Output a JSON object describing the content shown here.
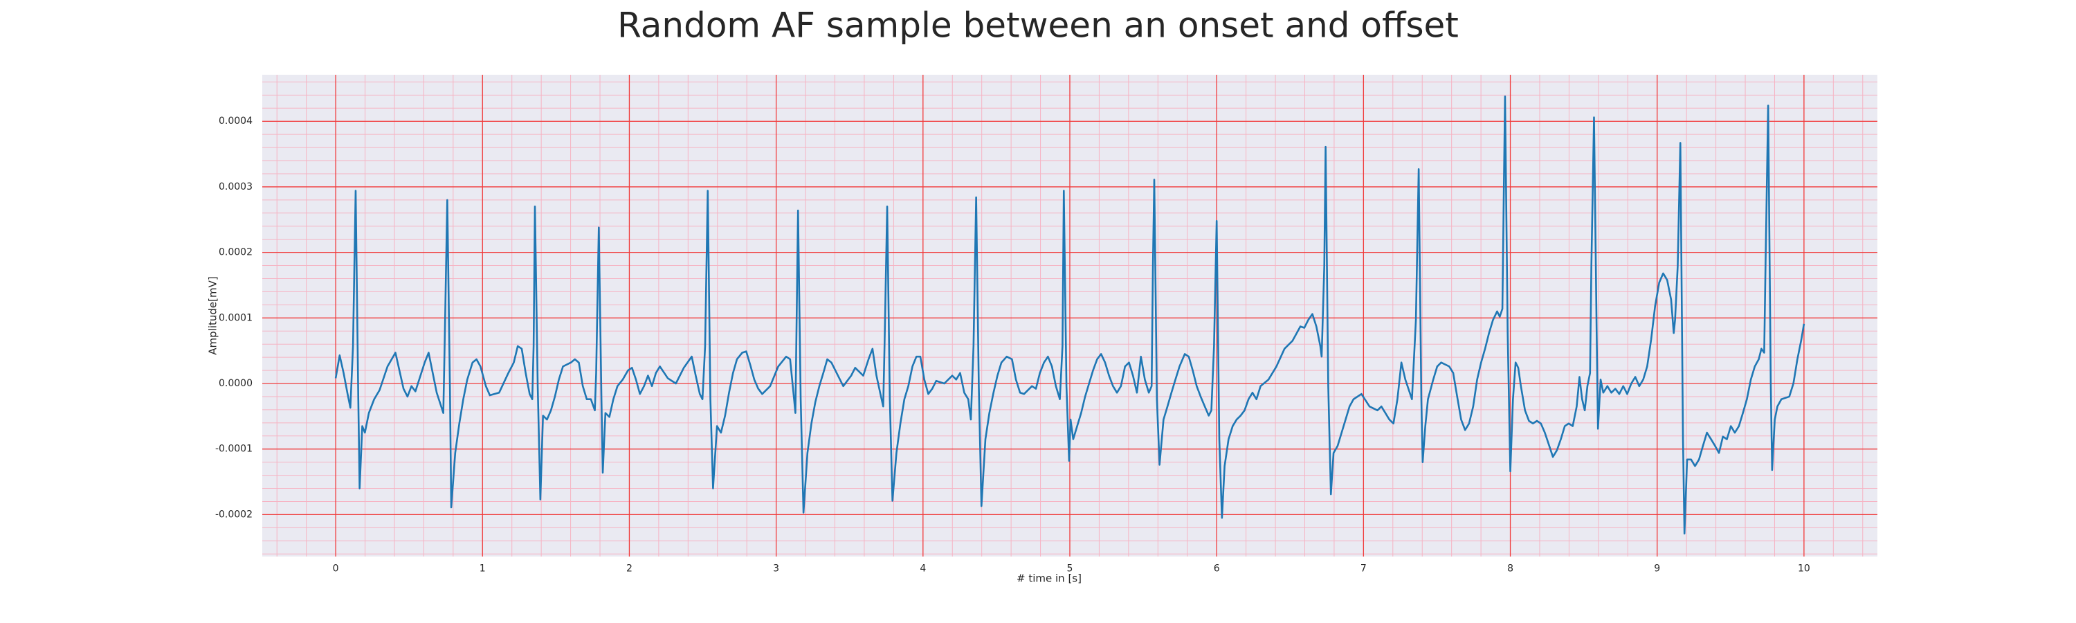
{
  "chart_data": {
    "type": "line",
    "title": "Random AF sample between an onset and offset",
    "xlabel": "# time in [s]",
    "ylabel": "Amplitude[mV]",
    "color": "#1f77b4",
    "grid": true,
    "minor_grid": true,
    "xlim": [
      -0.5,
      10.5
    ],
    "ylim": [
      -0.000264,
      0.000471
    ],
    "xticks": [
      0,
      1,
      2,
      3,
      4,
      5,
      6,
      7,
      8,
      9,
      10
    ],
    "yticks": [
      -0.0002,
      -0.0001,
      {
        "value": 0,
        "label": "0.0000"
      },
      0.0001,
      0.0002,
      0.0003,
      0.0004
    ],
    "x": [
      0.0,
      0.027,
      0.054,
      0.081,
      0.1,
      0.118,
      0.136,
      0.154,
      0.163,
      0.181,
      0.199,
      0.226,
      0.262,
      0.299,
      0.353,
      0.407,
      0.462,
      0.489,
      0.516,
      0.543,
      0.606,
      0.633,
      0.661,
      0.688,
      0.733,
      0.742,
      0.76,
      0.778,
      0.787,
      0.814,
      0.842,
      0.869,
      0.896,
      0.932,
      0.959,
      0.986,
      1.023,
      1.05,
      1.113,
      1.176,
      1.213,
      1.24,
      1.267,
      1.294,
      1.321,
      1.339,
      1.348,
      1.357,
      1.376,
      1.394,
      1.412,
      1.439,
      1.466,
      1.493,
      1.52,
      1.548,
      1.602,
      1.629,
      1.656,
      1.683,
      1.71,
      1.738,
      1.765,
      1.774,
      1.792,
      1.81,
      1.819,
      1.837,
      1.864,
      1.891,
      1.919,
      1.955,
      1.991,
      2.018,
      2.045,
      2.072,
      2.1,
      2.127,
      2.154,
      2.181,
      2.208,
      2.262,
      2.317,
      2.371,
      2.425,
      2.452,
      2.48,
      2.498,
      2.516,
      2.534,
      2.552,
      2.57,
      2.597,
      2.624,
      2.652,
      2.679,
      2.706,
      2.733,
      2.769,
      2.796,
      2.824,
      2.851,
      2.878,
      2.905,
      2.959,
      3.014,
      3.068,
      3.095,
      3.122,
      3.131,
      3.149,
      3.167,
      3.186,
      3.213,
      3.24,
      3.267,
      3.294,
      3.321,
      3.348,
      3.376,
      3.43,
      3.457,
      3.511,
      3.538,
      3.593,
      3.629,
      3.656,
      3.683,
      3.71,
      3.729,
      3.738,
      3.756,
      3.774,
      3.792,
      3.819,
      3.846,
      3.873,
      3.9,
      3.928,
      3.955,
      3.982,
      4.009,
      4.036,
      4.063,
      4.09,
      4.145,
      4.199,
      4.226,
      4.253,
      4.281,
      4.308,
      4.326,
      4.344,
      4.362,
      4.38,
      4.398,
      4.425,
      4.452,
      4.48,
      4.507,
      4.534,
      4.57,
      4.606,
      4.633,
      4.661,
      4.688,
      4.742,
      4.769,
      4.796,
      4.824,
      4.851,
      4.878,
      4.905,
      4.932,
      4.95,
      4.959,
      4.977,
      4.995,
      5.005,
      5.023,
      5.05,
      5.077,
      5.104,
      5.131,
      5.158,
      5.186,
      5.213,
      5.24,
      5.267,
      5.294,
      5.321,
      5.348,
      5.376,
      5.403,
      5.43,
      5.457,
      5.484,
      5.511,
      5.538,
      5.557,
      5.566,
      5.575,
      5.593,
      5.611,
      5.638,
      5.665,
      5.692,
      5.719,
      5.747,
      5.783,
      5.81,
      5.837,
      5.864,
      5.891,
      5.919,
      5.946,
      5.964,
      5.982,
      6.0,
      6.018,
      6.036,
      6.054,
      6.081,
      6.109,
      6.136,
      6.163,
      6.19,
      6.217,
      6.244,
      6.271,
      6.299,
      6.353,
      6.407,
      6.462,
      6.516,
      6.57,
      6.597,
      6.624,
      6.652,
      6.679,
      6.706,
      6.715,
      6.733,
      6.742,
      6.76,
      6.778,
      6.796,
      6.824,
      6.851,
      6.878,
      6.905,
      6.932,
      6.986,
      7.041,
      7.095,
      7.122,
      7.176,
      7.204,
      7.231,
      7.258,
      7.285,
      7.33,
      7.357,
      7.376,
      7.394,
      7.403,
      7.421,
      7.439,
      7.475,
      7.502,
      7.529,
      7.584,
      7.611,
      7.638,
      7.665,
      7.692,
      7.719,
      7.747,
      7.774,
      7.801,
      7.828,
      7.855,
      7.882,
      7.91,
      7.928,
      7.946,
      7.955,
      7.964,
      7.982,
      8.0,
      8.018,
      8.036,
      8.054,
      8.072,
      8.1,
      8.127,
      8.154,
      8.181,
      8.208,
      8.235,
      8.262,
      8.29,
      8.317,
      8.344,
      8.371,
      8.398,
      8.425,
      8.452,
      8.471,
      8.489,
      8.507,
      8.525,
      8.543,
      8.552,
      8.57,
      8.588,
      8.597,
      8.615,
      8.633,
      8.661,
      8.688,
      8.715,
      8.742,
      8.769,
      8.796,
      8.824,
      8.851,
      8.878,
      8.905,
      8.932,
      8.959,
      8.986,
      9.014,
      9.041,
      9.068,
      9.095,
      9.113,
      9.122,
      9.14,
      9.158,
      9.176,
      9.186,
      9.204,
      9.231,
      9.258,
      9.285,
      9.312,
      9.339,
      9.367,
      9.394,
      9.421,
      9.448,
      9.475,
      9.502,
      9.529,
      9.557,
      9.584,
      9.611,
      9.638,
      9.665,
      9.692,
      9.71,
      9.729,
      9.738,
      9.756,
      9.774,
      9.783,
      9.801,
      9.819,
      9.846,
      9.9,
      9.928,
      9.955,
      9.982,
      10.0
    ],
    "values": [
      8e-06,
      4.3e-05,
      1.6e-05,
      -1.6e-05,
      -3.7e-05,
      5.7e-05,
      0.000294,
      -2.4e-05,
      -0.00016,
      -6.5e-05,
      -7.5e-05,
      -4.5e-05,
      -2.4e-05,
      -1e-05,
      2.6e-05,
      4.7e-05,
      -8e-06,
      -2e-05,
      -4e-06,
      -1.2e-05,
      3.2e-05,
      4.7e-05,
      1.6e-05,
      -1.4e-05,
      -4.5e-05,
      5.7e-05,
      0.00028,
      -4e-06,
      -0.000189,
      -0.000106,
      -6.1e-05,
      -2.4e-05,
      6e-06,
      3.2e-05,
      3.7e-05,
      2.6e-05,
      -4e-06,
      -1.8e-05,
      -1.4e-05,
      1.6e-05,
      3.2e-05,
      5.7e-05,
      5.3e-05,
      1.6e-05,
      -1.6e-05,
      -2.4e-05,
      5.7e-05,
      0.00027,
      -4e-06,
      -0.000177,
      -4.9e-05,
      -5.5e-05,
      -4.1e-05,
      -2e-05,
      6e-06,
      2.6e-05,
      3.2e-05,
      3.7e-05,
      3.2e-05,
      -4e-06,
      -2.4e-05,
      -2.4e-05,
      -4.1e-05,
      1.6e-05,
      0.000238,
      -2.4e-05,
      -0.000136,
      -4.5e-05,
      -5.1e-05,
      -2.4e-05,
      -4e-06,
      6e-06,
      2e-05,
      2.4e-05,
      6e-06,
      -1.6e-05,
      -4e-06,
      1.2e-05,
      -4e-06,
      1.6e-05,
      2.6e-05,
      8e-06,
      0.0,
      2.4e-05,
      4.1e-05,
      1.2e-05,
      -1.6e-05,
      -2.4e-05,
      5.7e-05,
      0.000294,
      -2.4e-05,
      -0.00016,
      -6.5e-05,
      -7.5e-05,
      -4.9e-05,
      -1.4e-05,
      1.6e-05,
      3.7e-05,
      4.7e-05,
      4.9e-05,
      2.8e-05,
      6e-06,
      -8e-06,
      -1.6e-05,
      -4e-06,
      2.6e-05,
      4.1e-05,
      3.7e-05,
      -2.4e-05,
      -4.5e-05,
      0.000264,
      -2.4e-05,
      -0.000197,
      -0.000106,
      -6.1e-05,
      -2.8e-05,
      -4e-06,
      1.6e-05,
      3.7e-05,
      3.2e-05,
      8e-06,
      -4e-06,
      1.2e-05,
      2.4e-05,
      1.2e-05,
      3.7e-05,
      5.3e-05,
      1.2e-05,
      -1.6e-05,
      -3.5e-05,
      5.7e-05,
      0.00027,
      -2.4e-05,
      -0.000179,
      -0.000106,
      -6.1e-05,
      -2.4e-05,
      -4e-06,
      2.6e-05,
      4.1e-05,
      4.1e-05,
      6e-06,
      -1.6e-05,
      -8e-06,
      4e-06,
      0.0,
      1.2e-05,
      6e-06,
      1.6e-05,
      -1.4e-05,
      -2.4e-05,
      -5.5e-05,
      5.7e-05,
      0.000284,
      -4e-06,
      -0.000187,
      -8.5e-05,
      -4.5e-05,
      -1.4e-05,
      1.2e-05,
      3.2e-05,
      4.1e-05,
      3.7e-05,
      6e-06,
      -1.4e-05,
      -1.6e-05,
      -4e-06,
      -8e-06,
      1.6e-05,
      3.2e-05,
      4.1e-05,
      2.6e-05,
      -4e-06,
      -2.4e-05,
      5.7e-05,
      0.000294,
      -4e-06,
      -0.000118,
      -5.5e-05,
      -8.5e-05,
      -6.5e-05,
      -4.5e-05,
      -2e-05,
      0.0,
      2e-05,
      3.7e-05,
      4.5e-05,
      3.2e-05,
      1.2e-05,
      -4e-06,
      -1.4e-05,
      -4e-06,
      2.6e-05,
      3.2e-05,
      1.2e-05,
      -1.4e-05,
      4.1e-05,
      6e-06,
      -1.4e-05,
      -4e-06,
      0.000179,
      0.000311,
      -2.4e-05,
      -0.000124,
      -5.5e-05,
      -3.5e-05,
      -1.4e-05,
      6e-06,
      2.6e-05,
      4.5e-05,
      4.1e-05,
      2e-05,
      -4e-06,
      -2e-05,
      -3.5e-05,
      -4.9e-05,
      -4.1e-05,
      5.7e-05,
      0.000248,
      -8.5e-05,
      -0.000205,
      -0.000126,
      -8.5e-05,
      -6.5e-05,
      -5.5e-05,
      -4.9e-05,
      -4.1e-05,
      -2.4e-05,
      -1.4e-05,
      -2.4e-05,
      -4e-06,
      6e-06,
      2.6e-05,
      5.3e-05,
      6.5e-05,
      8.7e-05,
      8.5e-05,
      9.7e-05,
      0.000106,
      8.7e-05,
      5.7e-05,
      4.1e-05,
      0.000179,
      0.000361,
      -4e-06,
      -0.000169,
      -0.000106,
      -9.5e-05,
      -7.5e-05,
      -5.5e-05,
      -3.5e-05,
      -2.4e-05,
      -1.6e-05,
      -3.5e-05,
      -4.1e-05,
      -3.5e-05,
      -5.5e-05,
      -6.1e-05,
      -2.4e-05,
      3.2e-05,
      6e-06,
      -2.4e-05,
      9.7e-05,
      0.000327,
      -2.4e-05,
      -0.00012,
      -6.5e-05,
      -2.4e-05,
      6e-06,
      2.6e-05,
      3.2e-05,
      2.6e-05,
      1.6e-05,
      -2e-05,
      -5.5e-05,
      -7.1e-05,
      -6.1e-05,
      -3.5e-05,
      6e-06,
      3.2e-05,
      5.3e-05,
      7.7e-05,
      9.7e-05,
      0.00011,
      0.000102,
      0.000114,
      0.00028,
      0.000438,
      7.7e-05,
      -0.000134,
      -2.4e-05,
      3.2e-05,
      2.4e-05,
      -4e-06,
      -4.1e-05,
      -5.7e-05,
      -6.1e-05,
      -5.7e-05,
      -6.1e-05,
      -7.5e-05,
      -9.3e-05,
      -0.000112,
      -0.000102,
      -8.5e-05,
      -6.5e-05,
      -6.1e-05,
      -6.5e-05,
      -3.5e-05,
      1e-05,
      -2.4e-05,
      -4.1e-05,
      -4e-06,
      1.6e-05,
      0.000179,
      0.000406,
      7.7e-05,
      -6.9e-05,
      6e-06,
      -1.4e-05,
      -4e-06,
      -1.4e-05,
      -8e-06,
      -1.6e-05,
      -4e-06,
      -1.6e-05,
      0.0,
      1e-05,
      -4e-06,
      6e-06,
      2.6e-05,
      6.7e-05,
      0.000118,
      0.000154,
      0.000168,
      0.000158,
      0.000128,
      7.7e-05,
      9.7e-05,
      0.000179,
      0.000367,
      -8.5e-05,
      -0.000229,
      -0.000116,
      -0.000116,
      -0.000126,
      -0.000116,
      -9.5e-05,
      -7.5e-05,
      -8.5e-05,
      -9.5e-05,
      -0.000106,
      -8.1e-05,
      -8.5e-05,
      -6.5e-05,
      -7.5e-05,
      -6.5e-05,
      -4.5e-05,
      -2.4e-05,
      6e-06,
      2.6e-05,
      3.7e-05,
      5.3e-05,
      4.7e-05,
      0.000179,
      0.000424,
      -4e-06,
      -0.000132,
      -5.5e-05,
      -3.5e-05,
      -2.4e-05,
      -2e-05,
      0.0,
      3.7e-05,
      6.7e-05,
      9.1e-05
    ]
  }
}
